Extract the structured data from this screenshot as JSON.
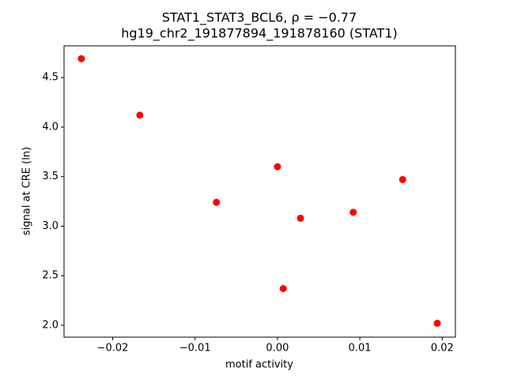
{
  "chart_data": {
    "type": "scatter",
    "title": "STAT1_STAT3_BCL6, ρ = −0.77",
    "subtitle": "hg19_chr2_191877894_191878160 (STAT1)",
    "x_label": "motif activity",
    "y_label": "signal at CRE (ln)",
    "color": "#ff0000",
    "x": [
      -0.0238,
      -0.0167,
      -0.0074,
      0.0,
      0.0007,
      0.0028,
      0.0092,
      0.0152,
      0.0194
    ],
    "values": [
      4.69,
      4.12,
      3.24,
      3.6,
      2.37,
      3.08,
      3.14,
      3.47,
      2.02
    ],
    "xlim": [
      -0.0259,
      0.0216
    ],
    "ylim": [
      1.88,
      4.82
    ],
    "xticks": [
      {
        "value": -0.02,
        "label": "−0.02"
      },
      {
        "value": -0.01,
        "label": "−0.01"
      },
      {
        "value": 0,
        "label": "0.00"
      },
      0.01,
      0.02
    ],
    "yticks": [
      {
        "value": 2,
        "label": "2.0"
      },
      2.5,
      {
        "value": 3,
        "label": "3.0"
      },
      3.5,
      {
        "value": 4,
        "label": "4.0"
      },
      4.5
    ],
    "grid": false
  }
}
